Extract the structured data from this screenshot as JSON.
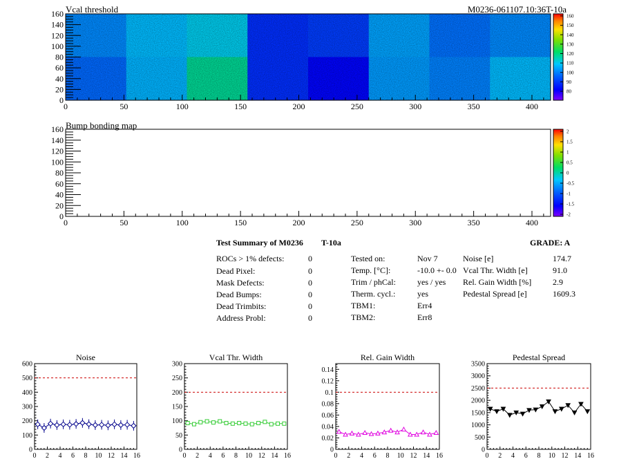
{
  "run_label": "M0236-061107.10:36T-10a",
  "vcal_map": {
    "title": "Vcal threshold",
    "xticks": [
      "0",
      "50",
      "100",
      "150",
      "200",
      "250",
      "300",
      "350",
      "400"
    ],
    "yticks": [
      "0",
      "20",
      "40",
      "60",
      "80",
      "100",
      "120",
      "140",
      "160"
    ],
    "zticks": [
      "80",
      "90",
      "100",
      "110",
      "120",
      "130",
      "140",
      "150",
      "160"
    ],
    "xrange": [
      0,
      416
    ],
    "yrange": [
      0,
      160
    ],
    "zrange": [
      75,
      162
    ],
    "roc_means": [
      [
        104,
        110,
        113,
        92,
        94,
        107,
        101,
        104
      ],
      [
        100,
        109,
        120,
        92,
        86,
        106,
        103,
        110
      ]
    ]
  },
  "bump_map": {
    "title": "Bump bonding map",
    "xticks": [
      "0",
      "50",
      "100",
      "150",
      "200",
      "250",
      "300",
      "350",
      "400"
    ],
    "yticks": [
      "0",
      "20",
      "40",
      "60",
      "80",
      "100",
      "120",
      "140",
      "160"
    ],
    "zticks": [
      "2",
      "1.5",
      "1",
      "0.5",
      "0",
      "-0.5",
      "-1",
      "-1.5",
      "-2"
    ]
  },
  "summary": {
    "heading": "Test Summary of M0236",
    "temp_tag": "T-10a",
    "grade": "GRADE:  A",
    "defects": [
      {
        "label": "ROCs > 1% defects:",
        "value": "0"
      },
      {
        "label": "Dead Pixel:",
        "value": "0"
      },
      {
        "label": "Mask Defects:",
        "value": "0"
      },
      {
        "label": "Dead Bumps:",
        "value": "0"
      },
      {
        "label": "Dead Trimbits:",
        "value": "0"
      },
      {
        "label": "Address Probl:",
        "value": "0"
      }
    ],
    "conditions": [
      {
        "label": "Tested on:",
        "value": "Nov 7"
      },
      {
        "label": "Temp. [°C]:",
        "value": "-10.0 +- 0.0"
      },
      {
        "label": "Trim / phCal:",
        "value": "yes / yes"
      },
      {
        "label": "Therm. cycl.:",
        "value": "yes"
      },
      {
        "label": "TBM1:",
        "value": "Err4"
      },
      {
        "label": "TBM2:",
        "value": "Err8"
      }
    ],
    "results": [
      {
        "label": "Noise [e]",
        "value": "174.7"
      },
      {
        "label": "Vcal Thr. Width [e]",
        "value": "91.0"
      },
      {
        "label": "Rel. Gain Width [%]",
        "value": "2.9"
      },
      {
        "label": "Pedestal Spread [e]",
        "value": "1609.3"
      }
    ]
  },
  "chart_data": [
    {
      "type": "heatmap",
      "title": "Vcal threshold",
      "x_range": [
        0,
        416
      ],
      "y_range": [
        0,
        160
      ],
      "z_range": [
        75,
        162
      ],
      "roc_grid_mean_values_top_row_then_bottom_row": [
        [
          104,
          110,
          113,
          92,
          94,
          107,
          101,
          104
        ],
        [
          100,
          109,
          120,
          92,
          86,
          106,
          103,
          110
        ]
      ]
    },
    {
      "type": "heatmap",
      "title": "Bump bonding map",
      "x_range": [
        0,
        416
      ],
      "y_range": [
        0,
        160
      ],
      "z_range": [
        -2,
        2
      ]
    },
    {
      "type": "scatter",
      "title": "Noise",
      "x": [
        0,
        1,
        2,
        3,
        4,
        5,
        6,
        7,
        8,
        9,
        10,
        11,
        12,
        13,
        14,
        15
      ],
      "values": [
        175,
        150,
        180,
        170,
        175,
        172,
        178,
        185,
        176,
        170,
        172,
        168,
        175,
        170,
        172,
        165
      ],
      "ylim": [
        0,
        600
      ],
      "xlim": [
        0,
        16
      ],
      "yticks": [
        "0",
        "100",
        "200",
        "300",
        "400",
        "500",
        "600"
      ],
      "xticks": [
        "0",
        "2",
        "4",
        "6",
        "8",
        "10",
        "12",
        "14",
        "16"
      ],
      "threshold": 500,
      "color": "#00008b"
    },
    {
      "type": "scatter",
      "title": "Vcal Thr. Width",
      "x": [
        0,
        1,
        2,
        3,
        4,
        5,
        6,
        7,
        8,
        9,
        10,
        11,
        12,
        13,
        14,
        15
      ],
      "values": [
        92,
        88,
        95,
        98,
        94,
        98,
        92,
        90,
        92,
        90,
        88,
        92,
        96,
        88,
        90,
        90
      ],
      "ylim": [
        0,
        300
      ],
      "xlim": [
        0,
        16
      ],
      "yticks": [
        "0",
        "50",
        "100",
        "150",
        "200",
        "250",
        "300"
      ],
      "xticks": [
        "0",
        "2",
        "4",
        "6",
        "8",
        "10",
        "12",
        "14",
        "16"
      ],
      "threshold": 200,
      "color": "#33cc33"
    },
    {
      "type": "scatter",
      "title": "Rel. Gain Width",
      "x": [
        0,
        1,
        2,
        3,
        4,
        5,
        6,
        7,
        8,
        9,
        10,
        11,
        12,
        13,
        14,
        15
      ],
      "values": [
        0.031,
        0.026,
        0.028,
        0.026,
        0.029,
        0.027,
        0.028,
        0.03,
        0.033,
        0.03,
        0.035,
        0.026,
        0.026,
        0.03,
        0.026,
        0.029
      ],
      "ylim": [
        0,
        0.15
      ],
      "xlim": [
        0,
        16
      ],
      "yticks": [
        "0",
        "0.02",
        "0.04",
        "0.06",
        "0.08",
        "0.1",
        "0.12",
        "0.14"
      ],
      "xticks": [
        "0",
        "2",
        "4",
        "6",
        "8",
        "10",
        "12",
        "14",
        "16"
      ],
      "threshold": 0.1,
      "color": "#e000e0"
    },
    {
      "type": "scatter",
      "title": "Pedestal Spread",
      "x": [
        0,
        1,
        2,
        3,
        4,
        5,
        6,
        7,
        8,
        9,
        10,
        11,
        12,
        13,
        14,
        15
      ],
      "values": [
        1650,
        1550,
        1650,
        1400,
        1500,
        1450,
        1600,
        1620,
        1750,
        1950,
        1550,
        1650,
        1800,
        1500,
        1850,
        1550
      ],
      "ylim": [
        0,
        3500
      ],
      "xlim": [
        0,
        16
      ],
      "yticks": [
        "0",
        "500",
        "1000",
        "1500",
        "2000",
        "2500",
        "3000",
        "3500"
      ],
      "xticks": [
        "0",
        "2",
        "4",
        "6",
        "8",
        "10",
        "12",
        "14",
        "16"
      ],
      "threshold": 2500,
      "color": "#000000"
    }
  ]
}
